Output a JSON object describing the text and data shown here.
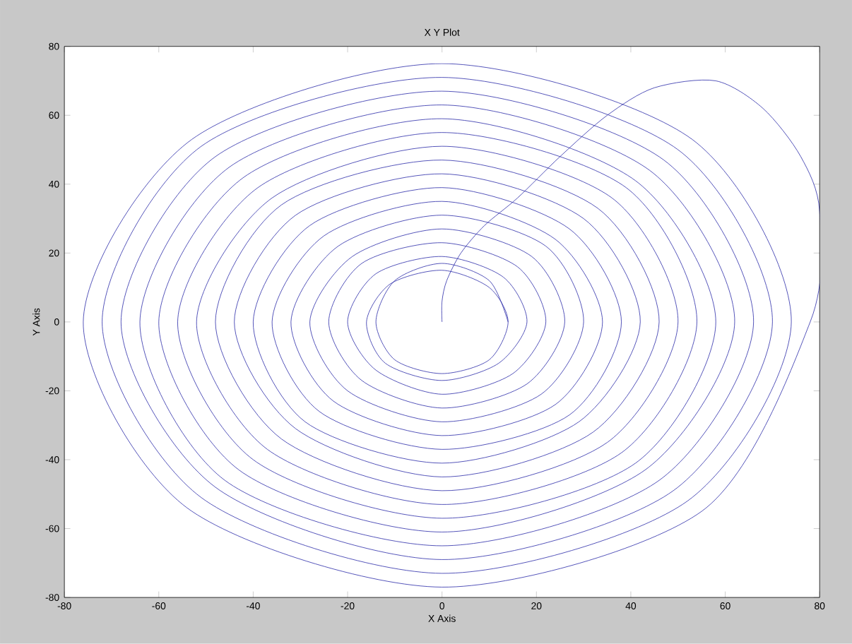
{
  "chart_data": {
    "type": "line",
    "title": "X Y Plot",
    "xlabel": "X Axis",
    "ylabel": "Y Axis",
    "xlim": [
      -80,
      80
    ],
    "ylim": [
      -80,
      80
    ],
    "xticks": [
      -80,
      -60,
      -40,
      -20,
      0,
      20,
      40,
      60,
      80
    ],
    "yticks": [
      -80,
      -60,
      -40,
      -20,
      0,
      20,
      40,
      60,
      80
    ],
    "grid": false,
    "marker": "none",
    "line_style": "solid",
    "series": [
      {
        "color": "#2a2aa8",
        "x": [
          0,
          0,
          1,
          4,
          9,
          16,
          25,
          35,
          45,
          58,
          68,
          76,
          80,
          78,
          55,
          0,
          -54,
          -76,
          -53,
          0,
          53,
          74,
          52,
          0,
          -51,
          -72,
          -51,
          0,
          50,
          70,
          49,
          0,
          -48,
          -68,
          -48,
          0,
          47,
          66,
          46,
          0,
          -46,
          -64,
          -45,
          0,
          44,
          62,
          43,
          0,
          -43,
          -60,
          -42,
          0,
          41,
          58,
          41,
          0,
          -40,
          -56,
          -39,
          0,
          39,
          54,
          38,
          0,
          -37,
          -52,
          -36,
          0,
          36,
          50,
          35,
          0,
          -34,
          -48,
          -34,
          0,
          33,
          46,
          32,
          0,
          -31,
          -44,
          -31,
          0,
          30,
          42,
          29,
          0,
          -29,
          -40,
          -28,
          0,
          27,
          38,
          27,
          0,
          -26,
          -36,
          -25,
          0,
          24,
          34,
          24,
          0,
          -23,
          -32,
          -22,
          0,
          22,
          30,
          21,
          0,
          -20,
          -28,
          -19,
          0,
          19,
          26,
          18,
          0,
          -17,
          -24,
          -17,
          0,
          16,
          22,
          15,
          0,
          -14,
          -20,
          -14,
          0,
          13,
          18,
          12,
          0,
          -12,
          -16,
          -11,
          0,
          10,
          14,
          10,
          0,
          -10,
          -14,
          -10,
          0,
          10,
          14
        ],
        "values": [
          0,
          6,
          12,
          20,
          28,
          36,
          48,
          60,
          68,
          70,
          62,
          48,
          32,
          0,
          -55,
          -77,
          -54,
          0,
          53,
          75,
          53,
          0,
          -52,
          -73,
          -51,
          0,
          51,
          71,
          50,
          0,
          -49,
          -69,
          -48,
          0,
          48,
          67,
          47,
          0,
          -46,
          -65,
          -46,
          0,
          45,
          63,
          44,
          0,
          -43,
          -61,
          -43,
          0,
          42,
          59,
          41,
          0,
          -41,
          -57,
          -40,
          0,
          39,
          55,
          39,
          0,
          -38,
          -53,
          -37,
          0,
          36,
          51,
          36,
          0,
          -35,
          -49,
          -34,
          0,
          34,
          47,
          33,
          0,
          -32,
          -45,
          -31,
          0,
          31,
          43,
          30,
          0,
          -29,
          -41,
          -29,
          0,
          28,
          39,
          27,
          0,
          -27,
          -37,
          -26,
          0,
          25,
          35,
          24,
          0,
          -24,
          -33,
          -23,
          0,
          22,
          31,
          22,
          0,
          -21,
          -29,
          -20,
          0,
          19,
          27,
          19,
          0,
          -18,
          -25,
          -17,
          0,
          17,
          23,
          16,
          0,
          -15,
          -21,
          -14,
          0,
          14,
          19,
          13,
          0,
          -12,
          -17,
          -12,
          0,
          11,
          15,
          10,
          0,
          -11,
          -15,
          -11,
          0,
          12,
          17,
          12,
          0
        ]
      }
    ]
  }
}
